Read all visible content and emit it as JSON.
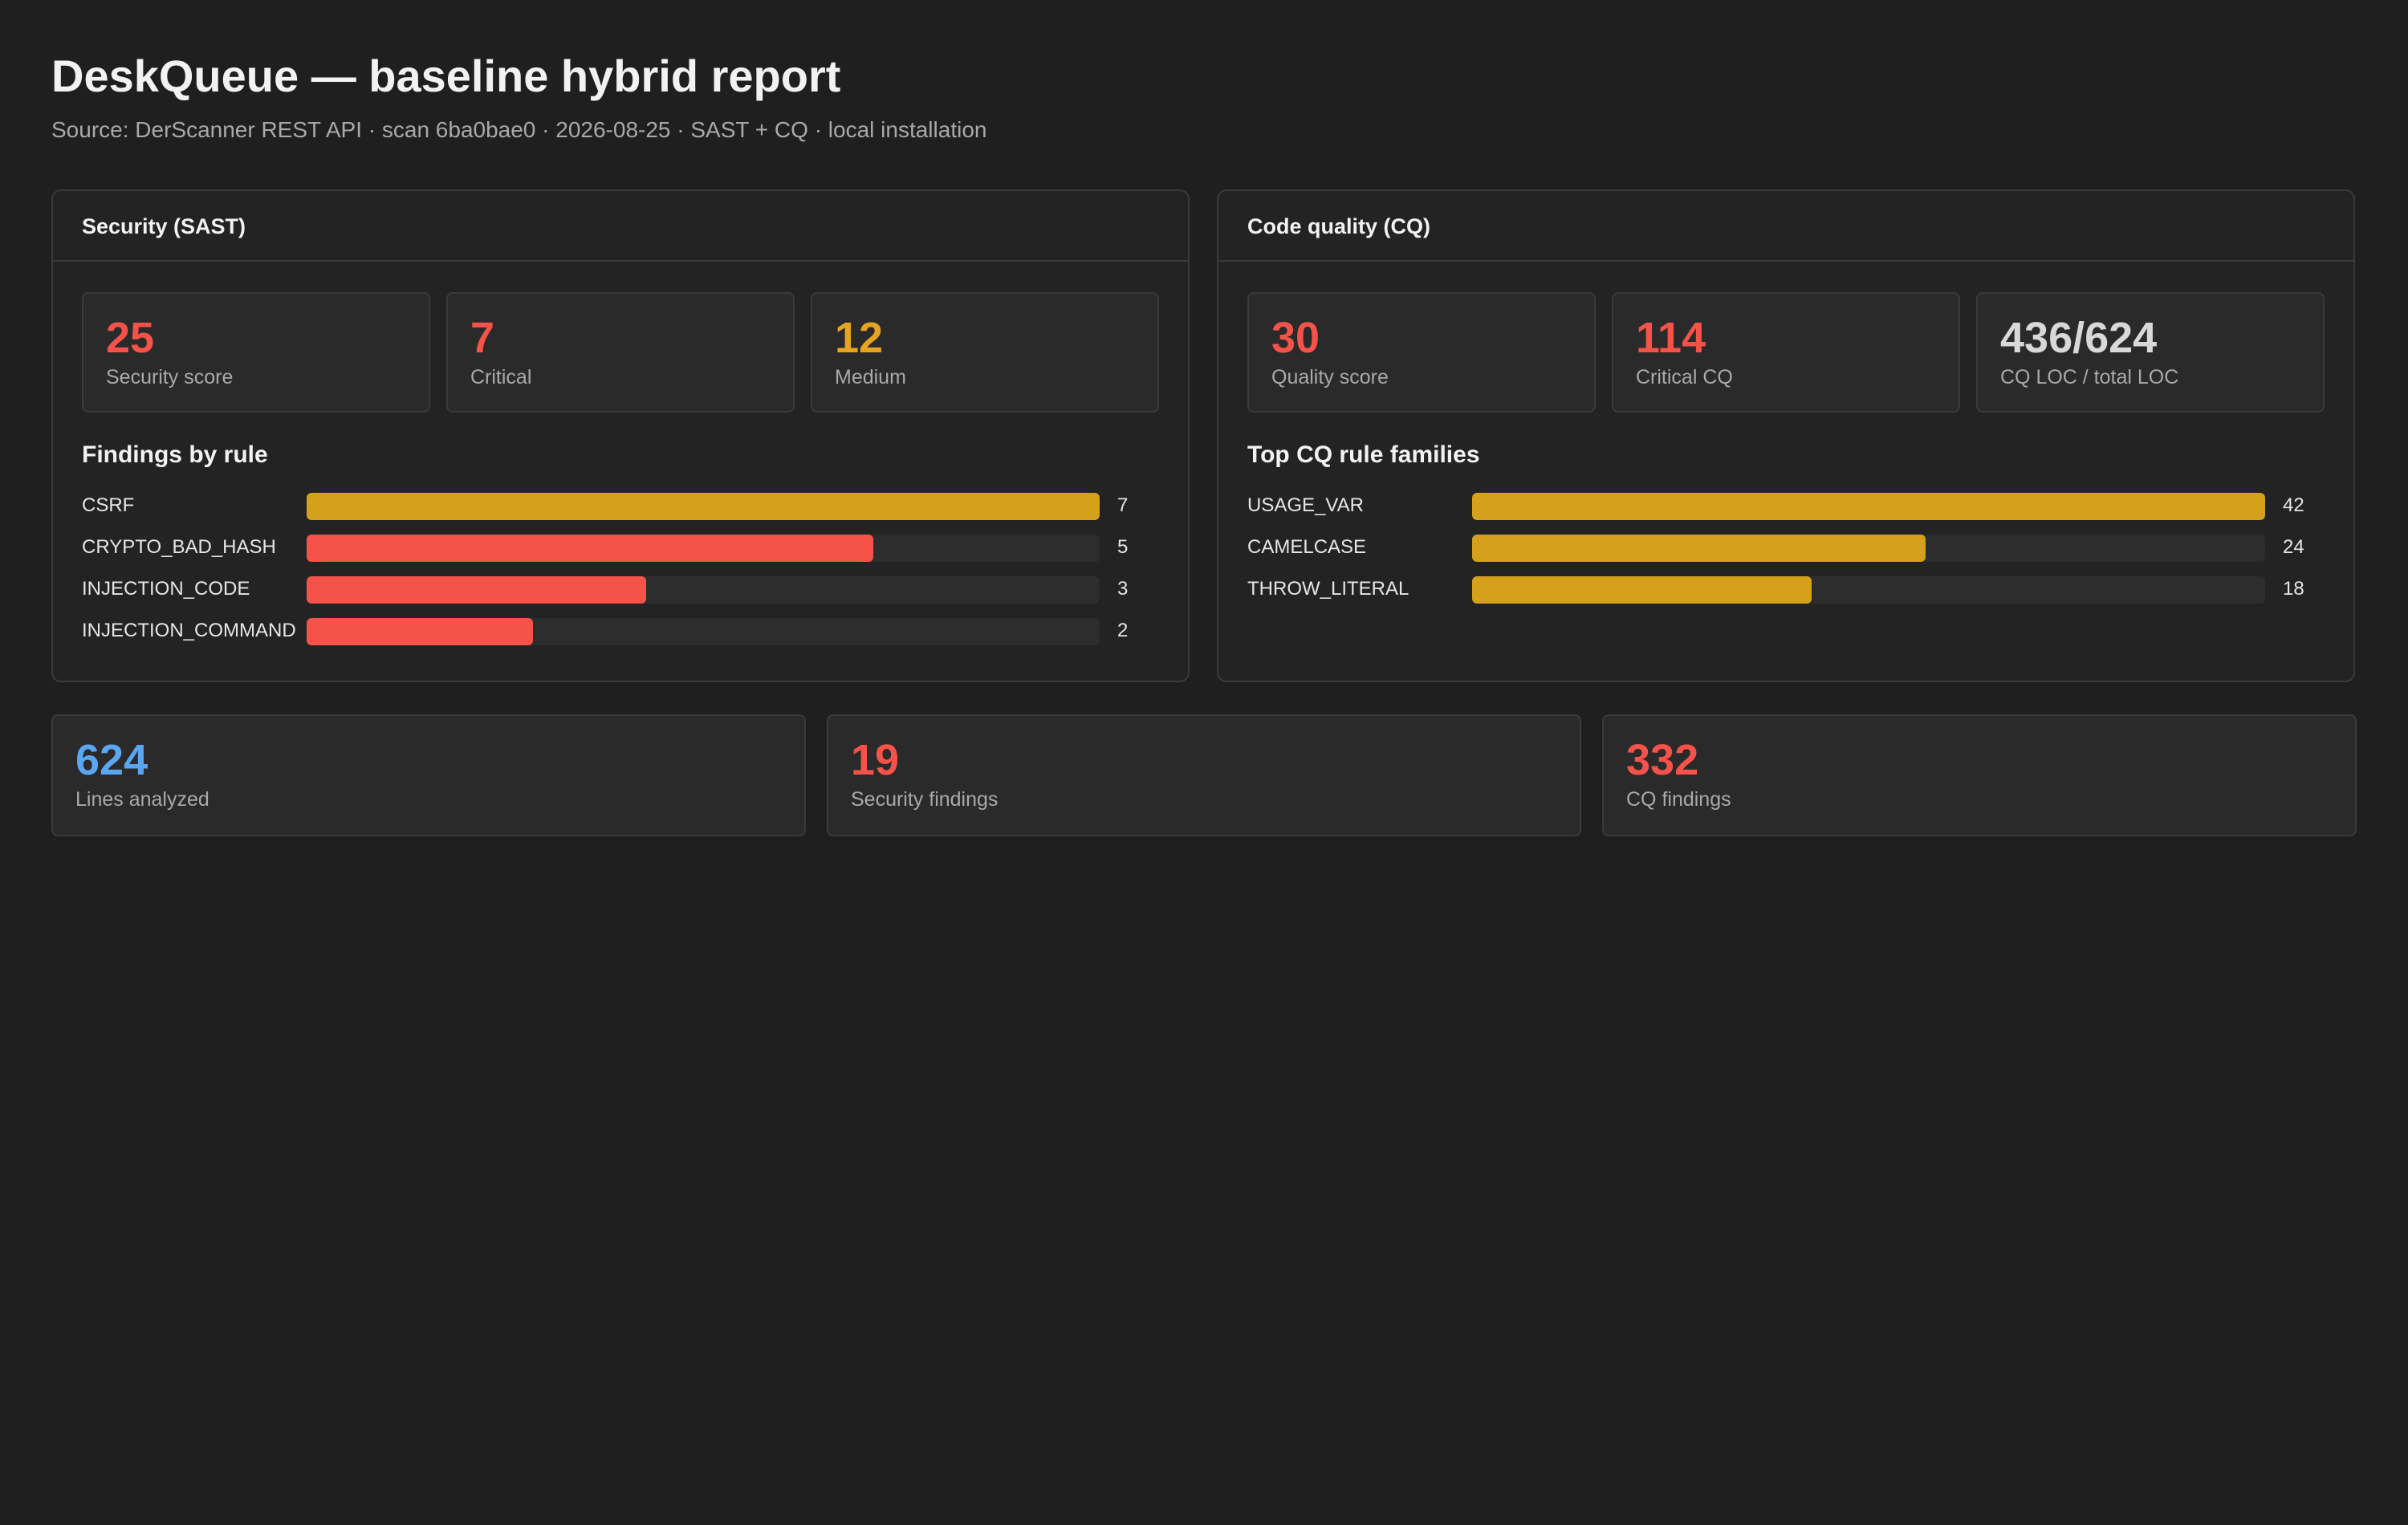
{
  "header": {
    "title": "DeskQueue — baseline hybrid report",
    "subtitle": "Source: DerScanner REST API · scan 6ba0bae0 · 2026-08-25 · SAST + CQ · local installation"
  },
  "colors": {
    "red": "#f5534a",
    "amber": "#e6a520",
    "blue": "#5aa6f0",
    "gray": "#d8d8d8",
    "bar_amber": "#d5a01c",
    "bar_red": "#f5534a"
  },
  "sast": {
    "title": "Security (SAST)",
    "kpis": [
      {
        "value": "25",
        "label": "Security score",
        "color": "#f5534a"
      },
      {
        "value": "7",
        "label": "Critical",
        "color": "#f5534a"
      },
      {
        "value": "12",
        "label": "Medium",
        "color": "#e6a520"
      }
    ],
    "chart_title": "Findings by rule",
    "chart_data": {
      "type": "bar",
      "categories": [
        "CSRF",
        "CRYPTO_BAD_HASH",
        "INJECTION_CODE",
        "INJECTION_COMMAND"
      ],
      "values": [
        7,
        5,
        3,
        2
      ],
      "colors": [
        "#d5a01c",
        "#f5534a",
        "#f5534a",
        "#f5534a"
      ],
      "xlim": [
        0,
        7
      ]
    }
  },
  "cq": {
    "title": "Code quality (CQ)",
    "kpis": [
      {
        "value": "30",
        "label": "Quality score",
        "color": "#f5534a"
      },
      {
        "value": "114",
        "label": "Critical CQ",
        "color": "#f5534a"
      },
      {
        "value": "436/624",
        "label": "CQ LOC / total LOC",
        "color": "#d8d8d8"
      }
    ],
    "chart_title": "Top CQ rule families",
    "chart_data": {
      "type": "bar",
      "categories": [
        "USAGE_VAR",
        "CAMELCASE",
        "THROW_LITERAL"
      ],
      "values": [
        42,
        24,
        18
      ],
      "colors": [
        "#d5a01c",
        "#d5a01c",
        "#d5a01c"
      ],
      "xlim": [
        0,
        42
      ]
    }
  },
  "summary": [
    {
      "value": "624",
      "label": "Lines analyzed",
      "color": "#5aa6f0"
    },
    {
      "value": "19",
      "label": "Security findings",
      "color": "#f5534a"
    },
    {
      "value": "332",
      "label": "CQ findings",
      "color": "#f5534a"
    }
  ]
}
